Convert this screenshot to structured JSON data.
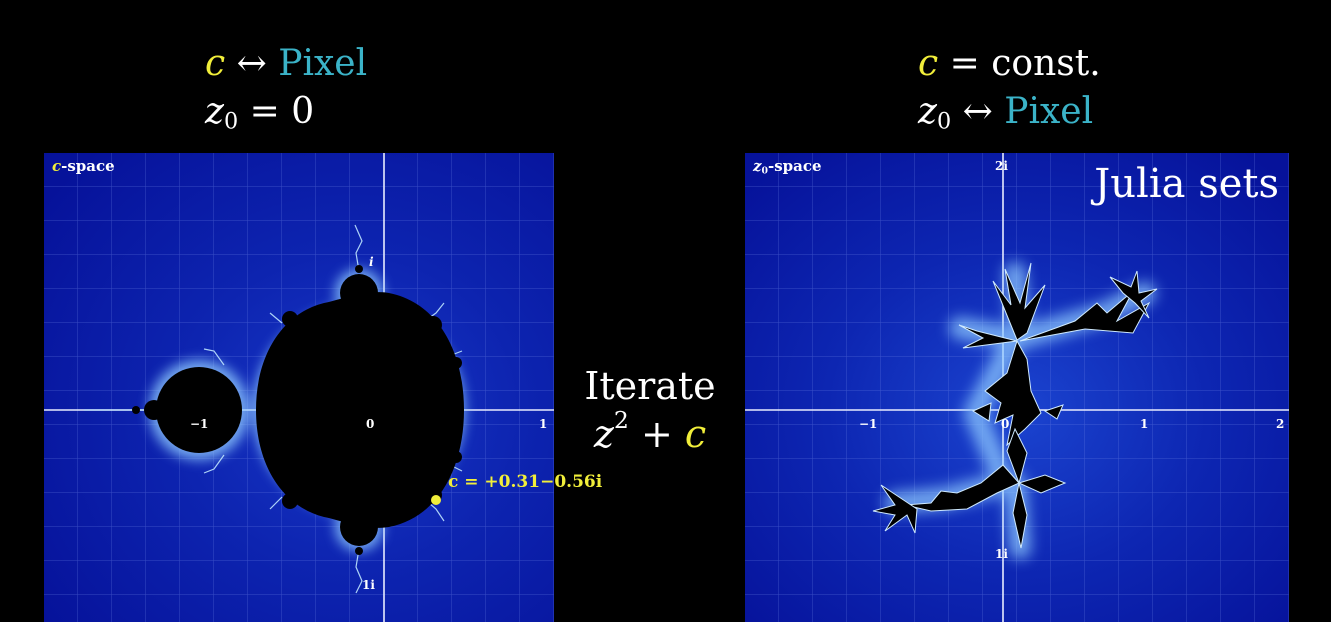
{
  "left_caption": {
    "line1_var": "c",
    "line1_arrow": "↔",
    "line1_word": "Pixel",
    "line2_var": "z",
    "line2_sub": "0",
    "line2_rest": "= 0"
  },
  "right_caption": {
    "line1_var": "c",
    "line1_rest": "= const.",
    "line2_var": "z",
    "line2_sub": "0",
    "line2_arrow": "↔",
    "line2_word": "Pixel"
  },
  "center": {
    "line1": "Iterate",
    "var_z": "z",
    "exp": "2",
    "plus": "+",
    "var_c": "c"
  },
  "left_panel": {
    "space_var": "c",
    "space_label": "-space",
    "ticks": {
      "neg1": "−1",
      "zero": "0",
      "one": "1",
      "i_top": "i",
      "i_bottom": "1i"
    },
    "c_value_label": "c = +0.31−0.56i"
  },
  "right_panel": {
    "space_var": "z",
    "space_sub": "0",
    "space_label": "-space",
    "title": "Julia sets",
    "ticks": {
      "neg1": "−1",
      "zero": "0",
      "one": "1",
      "two": "2",
      "i_top": "2i",
      "i_bottom": "1i"
    }
  },
  "colors": {
    "accent_yellow": "#f1ee3a",
    "accent_cyan": "#3bb3c8",
    "field_blue": "#0a1ea8",
    "fractal_glow": "#9fd8ff"
  }
}
